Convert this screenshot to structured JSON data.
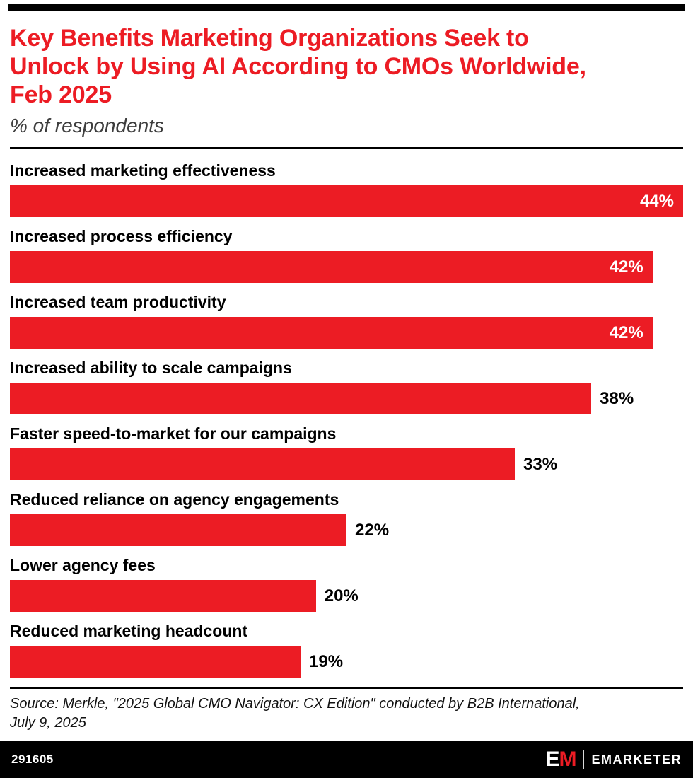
{
  "header": {
    "title": "Key Benefits Marketing Organizations Seek to Unlock by Using AI According to CMOs Worldwide, Feb 2025",
    "title_lines": [
      "Key Benefits Marketing Organizations Seek to",
      "Unlock by Using AI According to CMOs Worldwide,",
      "Feb 2025"
    ],
    "subtitle": "% of respondents"
  },
  "chart_data": {
    "type": "bar",
    "orientation": "horizontal",
    "title": "Key Benefits Marketing Organizations Seek to Unlock by Using AI According to CMOs Worldwide, Feb 2025",
    "subtitle": "% of respondents",
    "categories": [
      "Increased marketing effectiveness",
      "Increased process efficiency",
      "Increased team productivity",
      "Increased ability to scale campaigns",
      "Faster speed-to-market for our campaigns",
      "Reduced reliance on agency engagements",
      "Lower agency fees",
      "Reduced marketing headcount"
    ],
    "values": [
      44,
      42,
      42,
      38,
      33,
      22,
      20,
      19
    ],
    "value_labels": [
      "44%",
      "42%",
      "42%",
      "38%",
      "33%",
      "22%",
      "20%",
      "19%"
    ],
    "unit": "%",
    "xlim": [
      0,
      44
    ],
    "bar_color": "#EC1C24",
    "grid": false,
    "legend": false
  },
  "colors": {
    "accent_red": "#EC1C24",
    "bar_red": "#EC1C24",
    "footer_black": "#000000"
  },
  "footer": {
    "source_line1": "Source: Merkle, \"2025 Global CMO Navigator: CX Edition\" conducted by B2B International,",
    "source_line2": "July 9, 2025",
    "chart_id": "291605",
    "logo_e": "E",
    "logo_m": "M",
    "brand_name": "EMARKETER"
  }
}
